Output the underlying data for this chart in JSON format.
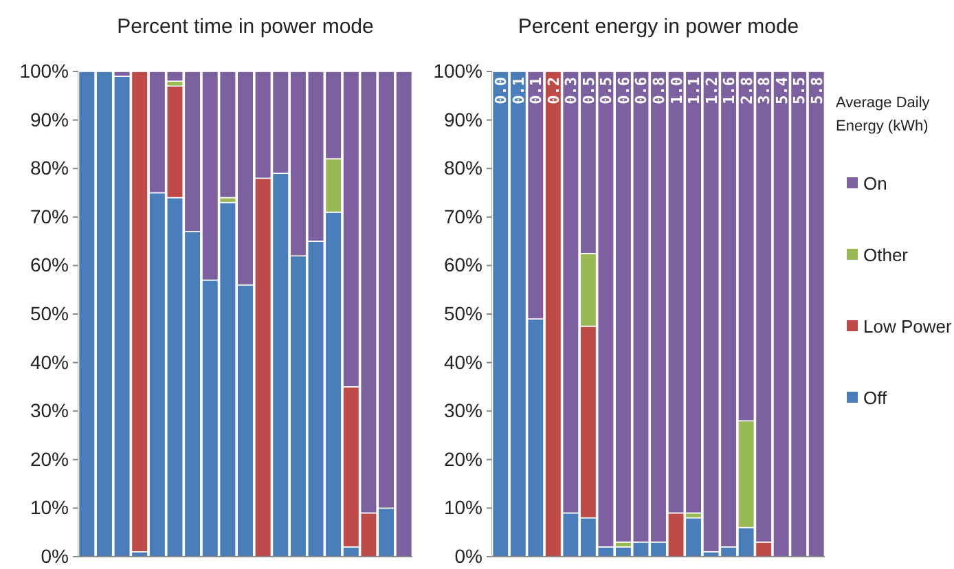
{
  "chart_data": [
    {
      "type": "bar",
      "title": "Percent time in power mode",
      "stacked": true,
      "categories": [
        null,
        null,
        null,
        null,
        null,
        null,
        null,
        null,
        null,
        null,
        null,
        null,
        null,
        null,
        null,
        null,
        null,
        null,
        null
      ],
      "ylim": [
        0,
        100
      ],
      "yticks": [
        {
          "value": 0,
          "label": "0%"
        },
        {
          "value": 10,
          "label": "10%"
        },
        {
          "value": 20,
          "label": "20%"
        },
        {
          "value": 30,
          "label": "30%"
        },
        {
          "value": 40,
          "label": "40%"
        },
        {
          "value": 50,
          "label": "50%"
        },
        {
          "value": 60,
          "label": "60%"
        },
        {
          "value": 70,
          "label": "70%"
        },
        {
          "value": 80,
          "label": "80%"
        },
        {
          "value": 90,
          "label": "90%"
        },
        {
          "value": 100,
          "label": "100%"
        }
      ],
      "grid": false,
      "legend": false,
      "series": [
        {
          "color": "#4a7ebb",
          "values": [
            100,
            100,
            99,
            1,
            75,
            74,
            67,
            57,
            73,
            56,
            0,
            79,
            62,
            65,
            71,
            2,
            0,
            10,
            0
          ]
        },
        {
          "color": "#be4b48",
          "values": [
            0,
            0,
            0,
            99,
            0,
            23,
            0,
            0,
            0,
            0,
            78,
            0,
            0,
            0,
            0,
            33,
            9,
            0,
            0
          ]
        },
        {
          "color": "#98b954",
          "values": [
            0,
            0,
            0,
            0,
            0,
            1,
            0,
            0,
            1,
            0,
            0,
            0,
            0,
            0,
            11,
            0,
            0,
            0,
            0
          ]
        },
        {
          "color": "#7d60a0",
          "values": [
            0,
            0,
            1,
            0,
            25,
            2,
            33,
            43,
            26,
            44,
            22,
            21,
            38,
            35,
            18,
            65,
            91,
            90,
            100
          ]
        }
      ]
    },
    {
      "type": "bar",
      "title": "Percent energy in power mode",
      "stacked": true,
      "legend_title": "Average Daily Energy (kWh)",
      "categories": [
        "0.0",
        "0.1",
        "0.1",
        "0.2",
        "0.3",
        "0.5",
        "0.5",
        "0.6",
        "0.6",
        "0.8",
        "1.0",
        "1.1",
        "1.2",
        "1.6",
        "2.8",
        "3.8",
        "5.4",
        "5.5",
        "5.8"
      ],
      "ylim": [
        0,
        100
      ],
      "yticks": [
        {
          "value": 0,
          "label": "0%"
        },
        {
          "value": 10,
          "label": "10%"
        },
        {
          "value": 20,
          "label": "20%"
        },
        {
          "value": 30,
          "label": "30%"
        },
        {
          "value": 40,
          "label": "40%"
        },
        {
          "value": 50,
          "label": "50%"
        },
        {
          "value": 60,
          "label": "60%"
        },
        {
          "value": 70,
          "label": "70%"
        },
        {
          "value": 80,
          "label": "80%"
        },
        {
          "value": 90,
          "label": "90%"
        },
        {
          "value": 100,
          "label": "100%"
        }
      ],
      "grid": false,
      "legend": "right",
      "series": [
        {
          "name": "Off",
          "color": "#4a7ebb",
          "values": [
            100,
            100,
            49,
            0,
            9,
            8,
            2,
            2,
            3,
            3,
            0,
            8,
            1,
            2,
            6,
            0,
            0,
            0,
            0
          ]
        },
        {
          "name": "Low Power",
          "color": "#be4b48",
          "values": [
            0,
            0,
            0,
            100,
            0,
            39.5,
            0,
            0,
            0,
            0,
            9,
            0,
            0,
            0,
            0,
            3,
            0,
            0,
            0
          ]
        },
        {
          "name": "Other",
          "color": "#98b954",
          "values": [
            0,
            0,
            0,
            0,
            0,
            15,
            0,
            1,
            0,
            0,
            0,
            1,
            0,
            0,
            22,
            0,
            0,
            0,
            0
          ]
        },
        {
          "name": "On",
          "color": "#7d60a0",
          "values": [
            0,
            0,
            51,
            0,
            91,
            37.5,
            98,
            97,
            97,
            97,
            91,
            91,
            99,
            98,
            72,
            97,
            100,
            100,
            100
          ]
        }
      ]
    }
  ]
}
